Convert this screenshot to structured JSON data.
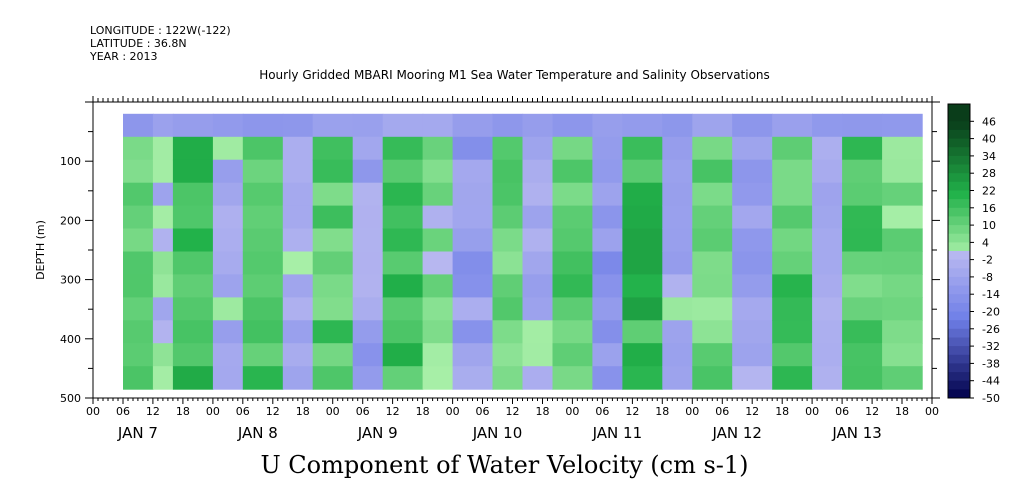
{
  "header": {
    "longitude": "LONGITUDE : 122W(-122)",
    "latitude": "LATITUDE : 36.8N",
    "year": "YEAR : 2013",
    "title": "Hourly Gridded MBARI Mooring M1 Sea Water Temperature and Salinity Observations",
    "figure_title": "U Component of Water Velocity (cm s-1)"
  },
  "chart_data": {
    "type": "heatmap",
    "title": "Hourly Gridded MBARI Mooring M1 Sea Water Temperature and Salinity Observations",
    "variable": "U Component of Water Velocity (cm s-1)",
    "ylabel": "DEPTH (m)",
    "ylim": [
      500,
      0
    ],
    "y_ticks": [
      100,
      200,
      300,
      400,
      500
    ],
    "x_hour_ticks": [
      "00",
      "06",
      "12",
      "18",
      "00",
      "06",
      "12",
      "18",
      "00",
      "06",
      "12",
      "18",
      "00",
      "06",
      "12",
      "18",
      "00",
      "06",
      "12",
      "18",
      "00",
      "06",
      "12",
      "18",
      "00",
      "06",
      "12",
      "18",
      "00"
    ],
    "x_day_labels": [
      "JAN  7",
      "JAN  8",
      "JAN  9",
      "JAN 10",
      "JAN 11",
      "JAN 12",
      "JAN 13"
    ],
    "x_range_hours": [
      0,
      168
    ],
    "data_start_hour": 6,
    "data_depth_range_m": [
      20,
      485
    ],
    "colorbar_labels": [
      "46",
      "40",
      "34",
      "28",
      "22",
      "16",
      "10",
      "4",
      "-2",
      "-8",
      "-14",
      "-20",
      "-26",
      "-32",
      "-38",
      "-44",
      "-50"
    ],
    "colorbar_range": [
      -50,
      52
    ],
    "colors": {
      "positive_dark": "#0a3d1a",
      "positive_mid": "#22b24a",
      "positive_light": "#a8efa8",
      "negative_light": "#b8b8f0",
      "negative_mid": "#6f7fe8",
      "negative_dark": "#00004a"
    },
    "velocity_bands": [
      {
        "hours": [
          6,
          12
        ],
        "value": 10
      },
      {
        "hours": [
          12,
          16
        ],
        "value": -2
      },
      {
        "hours": [
          16,
          24
        ],
        "value": 16
      },
      {
        "hours": [
          24,
          30
        ],
        "value": -4
      },
      {
        "hours": [
          30,
          38
        ],
        "value": 14
      },
      {
        "hours": [
          38,
          44
        ],
        "value": -6
      },
      {
        "hours": [
          44,
          52
        ],
        "value": 12
      },
      {
        "hours": [
          52,
          58
        ],
        "value": -8
      },
      {
        "hours": [
          58,
          66
        ],
        "value": 16
      },
      {
        "hours": [
          66,
          72
        ],
        "value": 4
      },
      {
        "hours": [
          72,
          80
        ],
        "value": -10
      },
      {
        "hours": [
          80,
          86
        ],
        "value": 8
      },
      {
        "hours": [
          86,
          92
        ],
        "value": -6
      },
      {
        "hours": [
          92,
          100
        ],
        "value": 12
      },
      {
        "hours": [
          100,
          106
        ],
        "value": -12
      },
      {
        "hours": [
          106,
          114
        ],
        "value": 18
      },
      {
        "hours": [
          114,
          120
        ],
        "value": -4
      },
      {
        "hours": [
          120,
          128
        ],
        "value": 8
      },
      {
        "hours": [
          128,
          136
        ],
        "value": -8
      },
      {
        "hours": [
          136,
          144
        ],
        "value": 14
      },
      {
        "hours": [
          144,
          150
        ],
        "value": -6
      },
      {
        "hours": [
          150,
          158
        ],
        "value": 12
      },
      {
        "hours": [
          158,
          166
        ],
        "value": 6
      }
    ]
  }
}
